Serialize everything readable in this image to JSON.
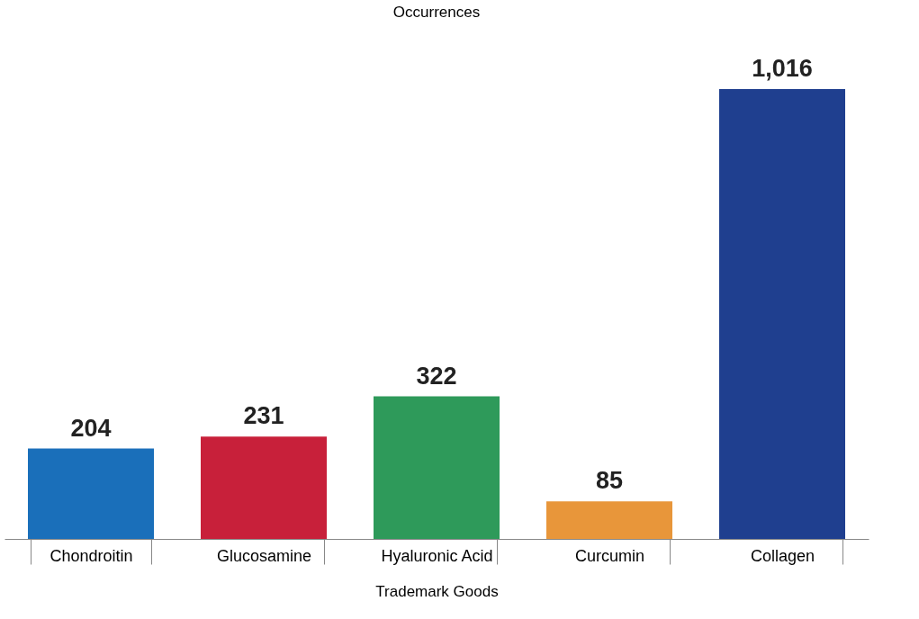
{
  "chart_data": {
    "type": "bar",
    "ylabel": "Occurrences",
    "xlabel": "Trademark Goods",
    "categories": [
      "Chondroitin",
      "Glucosamine",
      "Hyaluronic Acid",
      "Curcumin",
      "Collagen"
    ],
    "values": [
      204,
      231,
      322,
      85,
      1016
    ],
    "value_labels": [
      "204",
      "231",
      "322",
      "85",
      "1,016"
    ],
    "colors": [
      "#1a6fba",
      "#c8203a",
      "#2e9a5a",
      "#e8963a",
      "#1f3f8f"
    ]
  }
}
